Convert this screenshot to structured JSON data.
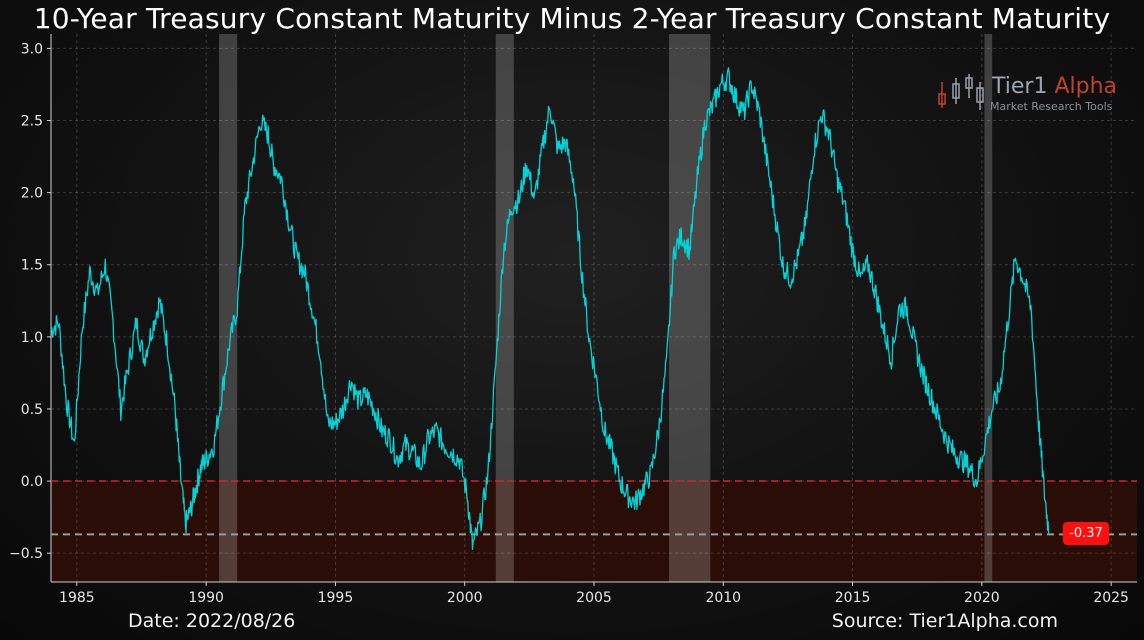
{
  "chart_data": {
    "type": "line",
    "title": "10-Year Treasury Constant Maturity Minus 2-Year Treasury Constant Maturity",
    "xlabel": "",
    "ylabel": "",
    "xlim": [
      1984,
      2026
    ],
    "ylim": [
      -0.7,
      3.1
    ],
    "x_ticks": [
      1985,
      1990,
      1995,
      2000,
      2005,
      2010,
      2015,
      2020,
      2025
    ],
    "y_ticks": [
      -0.5,
      0.0,
      0.5,
      1.0,
      1.5,
      2.0,
      2.5,
      3.0
    ],
    "y_tick_labels": [
      "−0.5",
      "0.0",
      "0.5",
      "1.0",
      "1.5",
      "2.0",
      "2.5",
      "3.0"
    ],
    "grid": true,
    "series": [
      {
        "name": "10Y minus 2Y spread",
        "color": "#00d4d8",
        "x": [
          1984.0,
          1984.3,
          1984.6,
          1984.9,
          1985.2,
          1985.5,
          1985.8,
          1986.1,
          1986.4,
          1986.7,
          1987.0,
          1987.3,
          1987.6,
          1987.9,
          1988.2,
          1988.5,
          1988.8,
          1989.0,
          1989.2,
          1989.4,
          1989.6,
          1989.8,
          1990.0,
          1990.3,
          1990.6,
          1990.9,
          1991.2,
          1991.5,
          1991.8,
          1992.1,
          1992.4,
          1992.6,
          1992.9,
          1993.2,
          1993.5,
          1993.8,
          1994.1,
          1994.4,
          1994.7,
          1995.0,
          1995.3,
          1995.6,
          1995.9,
          1996.2,
          1996.5,
          1996.8,
          1997.1,
          1997.4,
          1997.7,
          1998.0,
          1998.3,
          1998.6,
          1998.9,
          1999.2,
          1999.5,
          1999.8,
          2000.1,
          2000.3,
          2000.6,
          2000.9,
          2001.2,
          2001.5,
          2001.8,
          2002.1,
          2002.4,
          2002.7,
          2003.0,
          2003.3,
          2003.6,
          2003.9,
          2004.2,
          2004.5,
          2004.8,
          2005.1,
          2005.4,
          2005.7,
          2006.0,
          2006.3,
          2006.6,
          2006.9,
          2007.2,
          2007.5,
          2007.8,
          2008.1,
          2008.4,
          2008.7,
          2009.0,
          2009.3,
          2009.6,
          2009.9,
          2010.2,
          2010.5,
          2010.8,
          2011.1,
          2011.4,
          2011.7,
          2012.0,
          2012.3,
          2012.6,
          2012.9,
          2013.2,
          2013.5,
          2013.8,
          2014.1,
          2014.4,
          2014.7,
          2015.0,
          2015.3,
          2015.6,
          2015.9,
          2016.2,
          2016.5,
          2016.8,
          2017.1,
          2017.4,
          2017.7,
          2018.0,
          2018.3,
          2018.6,
          2018.9,
          2019.2,
          2019.5,
          2019.8,
          2020.1,
          2020.4,
          2020.7,
          2021.0,
          2021.3,
          2021.6,
          2021.9,
          2022.2,
          2022.4,
          2022.6
        ],
        "values": [
          1.05,
          1.1,
          0.55,
          0.25,
          1.05,
          1.45,
          1.3,
          1.5,
          1.1,
          0.5,
          0.8,
          1.1,
          0.85,
          1.05,
          1.25,
          0.95,
          0.5,
          0.05,
          -0.3,
          -0.2,
          -0.05,
          0.1,
          0.15,
          0.25,
          0.6,
          0.95,
          1.2,
          1.9,
          2.2,
          2.5,
          2.4,
          2.2,
          2.1,
          1.8,
          1.55,
          1.45,
          1.2,
          0.9,
          0.4,
          0.4,
          0.5,
          0.7,
          0.55,
          0.6,
          0.5,
          0.35,
          0.3,
          0.15,
          0.25,
          0.2,
          0.1,
          0.3,
          0.35,
          0.25,
          0.2,
          0.15,
          -0.1,
          -0.45,
          -0.3,
          0.05,
          0.8,
          1.6,
          1.9,
          1.95,
          2.2,
          1.95,
          2.3,
          2.6,
          2.3,
          2.35,
          2.1,
          1.5,
          1.0,
          0.7,
          0.35,
          0.2,
          0.0,
          -0.1,
          -0.15,
          -0.05,
          0.05,
          0.35,
          0.8,
          1.6,
          1.7,
          1.6,
          2.1,
          2.5,
          2.6,
          2.75,
          2.8,
          2.65,
          2.55,
          2.75,
          2.55,
          2.2,
          1.85,
          1.5,
          1.4,
          1.55,
          1.8,
          2.3,
          2.55,
          2.4,
          2.1,
          1.9,
          1.6,
          1.4,
          1.5,
          1.3,
          1.05,
          0.85,
          1.2,
          1.2,
          0.95,
          0.75,
          0.6,
          0.45,
          0.3,
          0.2,
          0.15,
          0.1,
          0.0,
          0.25,
          0.5,
          0.65,
          1.1,
          1.55,
          1.4,
          1.2,
          0.4,
          -0.05,
          -0.37
        ],
        "last_value": -0.37
      }
    ],
    "horizontal_lines": [
      {
        "y": 0.0,
        "color": "#e02020",
        "style": "dashed"
      },
      {
        "y": -0.37,
        "color": "#9a9a9a",
        "style": "dashed"
      }
    ],
    "negative_region": {
      "from": -0.7,
      "to": 0.0,
      "color": "#2a0d06"
    },
    "recessions": [
      {
        "start": 1990.5,
        "end": 1991.2
      },
      {
        "start": 2001.2,
        "end": 2001.9
      },
      {
        "start": 2007.9,
        "end": 2009.5
      },
      {
        "start": 2020.1,
        "end": 2020.4
      }
    ]
  },
  "last_badge": "-0.37",
  "footer": {
    "date": "Date: 2022/08/26",
    "source": "Source: Tier1Alpha.com"
  },
  "logo": {
    "name_primary": "Tier1",
    "name_accent": "Alpha",
    "subtitle": "Market  Research Tools"
  },
  "colors": {
    "line": "#00d4d8",
    "zero_line": "#e02020",
    "badge": "#ff1010",
    "background": "#0b0b0b"
  }
}
